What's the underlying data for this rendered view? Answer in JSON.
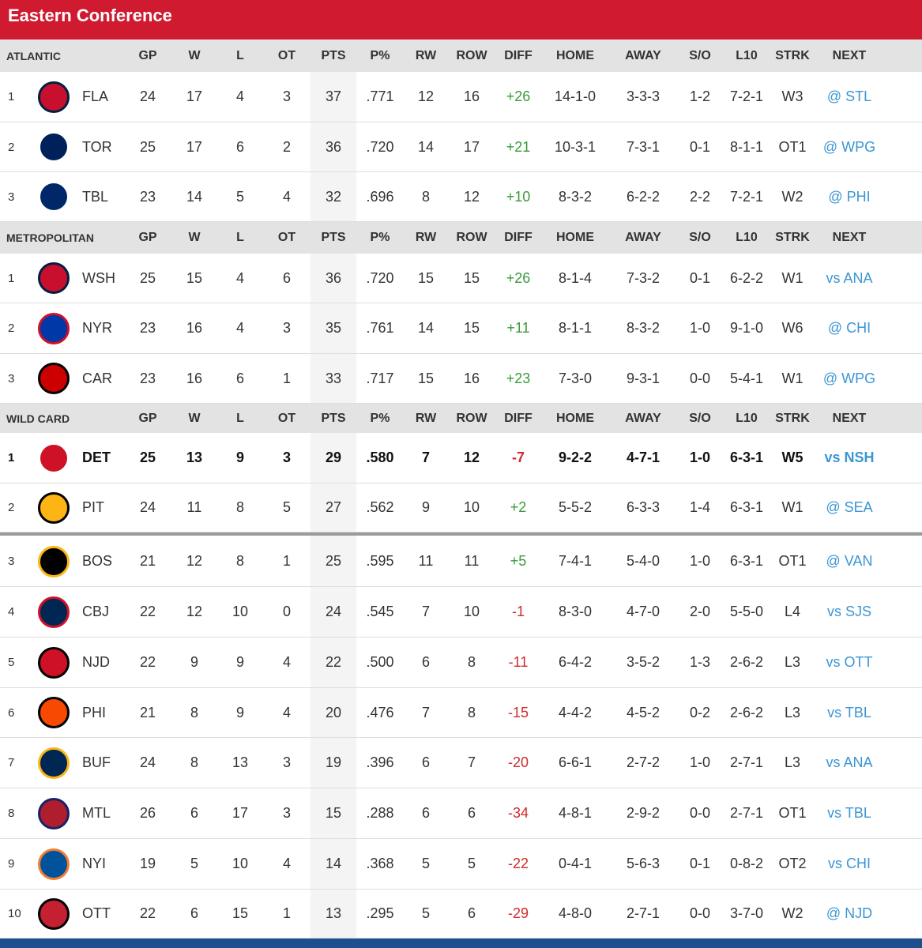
{
  "conference_title": "Eastern Conference",
  "columns": [
    "GP",
    "W",
    "L",
    "OT",
    "PTS",
    "P%",
    "RW",
    "ROW",
    "DIFF",
    "HOME",
    "AWAY",
    "S/O",
    "L10",
    "STRK",
    "NEXT"
  ],
  "groups": [
    {
      "name": "ATLANTIC",
      "teams": [
        {
          "pos": "1",
          "abbr": "FLA",
          "gp": "24",
          "w": "17",
          "l": "4",
          "ot": "3",
          "pts": "37",
          "pct": ".771",
          "rw": "12",
          "row": "16",
          "diff": "+26",
          "home": "14-1-0",
          "away": "3-3-3",
          "so": "1-2",
          "l10": "7-2-1",
          "strk": "W3",
          "next": "@ STL",
          "logo": {
            "icon": "panthers-logo-icon",
            "color": "#c8102e",
            "fg": "#041e42"
          }
        },
        {
          "pos": "2",
          "abbr": "TOR",
          "gp": "25",
          "w": "17",
          "l": "6",
          "ot": "2",
          "pts": "36",
          "pct": ".720",
          "rw": "14",
          "row": "17",
          "diff": "+21",
          "home": "10-3-1",
          "away": "7-3-1",
          "so": "0-1",
          "l10": "8-1-1",
          "strk": "OT1",
          "next": "@ WPG",
          "logo": {
            "icon": "maple-leafs-logo-icon",
            "color": "#00205b",
            "fg": "#ffffff"
          }
        },
        {
          "pos": "3",
          "abbr": "TBL",
          "gp": "23",
          "w": "14",
          "l": "5",
          "ot": "4",
          "pts": "32",
          "pct": ".696",
          "rw": "8",
          "row": "12",
          "diff": "+10",
          "home": "8-3-2",
          "away": "6-2-2",
          "so": "2-2",
          "l10": "7-2-1",
          "strk": "W2",
          "next": "@ PHI",
          "logo": {
            "icon": "lightning-logo-icon",
            "color": "#002868",
            "fg": "#ffffff"
          }
        }
      ]
    },
    {
      "name": "METROPOLITAN",
      "teams": [
        {
          "pos": "1",
          "abbr": "WSH",
          "gp": "25",
          "w": "15",
          "l": "4",
          "ot": "6",
          "pts": "36",
          "pct": ".720",
          "rw": "15",
          "row": "15",
          "diff": "+26",
          "home": "8-1-4",
          "away": "7-3-2",
          "so": "0-1",
          "l10": "6-2-2",
          "strk": "W1",
          "next": "vs ANA",
          "logo": {
            "icon": "capitals-logo-icon",
            "color": "#c8102e",
            "fg": "#041e42"
          }
        },
        {
          "pos": "2",
          "abbr": "NYR",
          "gp": "23",
          "w": "16",
          "l": "4",
          "ot": "3",
          "pts": "35",
          "pct": ".761",
          "rw": "14",
          "row": "15",
          "diff": "+11",
          "home": "8-1-1",
          "away": "8-3-2",
          "so": "1-0",
          "l10": "9-1-0",
          "strk": "W6",
          "next": "@ CHI",
          "logo": {
            "icon": "rangers-logo-icon",
            "color": "#0038a8",
            "fg": "#ce1126"
          }
        },
        {
          "pos": "3",
          "abbr": "CAR",
          "gp": "23",
          "w": "16",
          "l": "6",
          "ot": "1",
          "pts": "33",
          "pct": ".717",
          "rw": "15",
          "row": "16",
          "diff": "+23",
          "home": "7-3-0",
          "away": "9-3-1",
          "so": "0-0",
          "l10": "5-4-1",
          "strk": "W1",
          "next": "@ WPG",
          "logo": {
            "icon": "hurricanes-logo-icon",
            "color": "#cc0000",
            "fg": "#000000"
          }
        }
      ]
    },
    {
      "name": "WILD CARD",
      "teams": [
        {
          "pos": "1",
          "abbr": "DET",
          "gp": "25",
          "w": "13",
          "l": "9",
          "ot": "3",
          "pts": "29",
          "pct": ".580",
          "rw": "7",
          "row": "12",
          "diff": "-7",
          "home": "9-2-2",
          "away": "4-7-1",
          "so": "1-0",
          "l10": "6-3-1",
          "strk": "W5",
          "next": "vs NSH",
          "bold": true,
          "logo": {
            "icon": "red-wings-logo-icon",
            "color": "#ce1126",
            "fg": "#ffffff"
          }
        },
        {
          "pos": "2",
          "abbr": "PIT",
          "gp": "24",
          "w": "11",
          "l": "8",
          "ot": "5",
          "pts": "27",
          "pct": ".562",
          "rw": "9",
          "row": "10",
          "diff": "+2",
          "home": "5-5-2",
          "away": "6-3-3",
          "so": "1-4",
          "l10": "6-3-1",
          "strk": "W1",
          "next": "@ SEA",
          "logo": {
            "icon": "penguins-logo-icon",
            "color": "#fcb514",
            "fg": "#000000"
          }
        },
        {
          "pos": "3",
          "abbr": "BOS",
          "gp": "21",
          "w": "12",
          "l": "8",
          "ot": "1",
          "pts": "25",
          "pct": ".595",
          "rw": "11",
          "row": "11",
          "diff": "+5",
          "home": "7-4-1",
          "away": "5-4-0",
          "so": "1-0",
          "l10": "6-3-1",
          "strk": "OT1",
          "next": "@ VAN",
          "logo": {
            "icon": "bruins-logo-icon",
            "color": "#000000",
            "fg": "#fcb514"
          }
        },
        {
          "pos": "4",
          "abbr": "CBJ",
          "gp": "22",
          "w": "12",
          "l": "10",
          "ot": "0",
          "pts": "24",
          "pct": ".545",
          "rw": "7",
          "row": "10",
          "diff": "-1",
          "home": "8-3-0",
          "away": "4-7-0",
          "so": "2-0",
          "l10": "5-5-0",
          "strk": "L4",
          "next": "vs SJS",
          "logo": {
            "icon": "blue-jackets-logo-icon",
            "color": "#002654",
            "fg": "#ce1126"
          }
        },
        {
          "pos": "5",
          "abbr": "NJD",
          "gp": "22",
          "w": "9",
          "l": "9",
          "ot": "4",
          "pts": "22",
          "pct": ".500",
          "rw": "6",
          "row": "8",
          "diff": "-11",
          "home": "6-4-2",
          "away": "3-5-2",
          "so": "1-3",
          "l10": "2-6-2",
          "strk": "L3",
          "next": "vs OTT",
          "logo": {
            "icon": "devils-logo-icon",
            "color": "#ce1126",
            "fg": "#000000"
          }
        },
        {
          "pos": "6",
          "abbr": "PHI",
          "gp": "21",
          "w": "8",
          "l": "9",
          "ot": "4",
          "pts": "20",
          "pct": ".476",
          "rw": "7",
          "row": "8",
          "diff": "-15",
          "home": "4-4-2",
          "away": "4-5-2",
          "so": "0-2",
          "l10": "2-6-2",
          "strk": "L3",
          "next": "vs TBL",
          "logo": {
            "icon": "flyers-logo-icon",
            "color": "#f74902",
            "fg": "#000000"
          }
        },
        {
          "pos": "7",
          "abbr": "BUF",
          "gp": "24",
          "w": "8",
          "l": "13",
          "ot": "3",
          "pts": "19",
          "pct": ".396",
          "rw": "6",
          "row": "7",
          "diff": "-20",
          "home": "6-6-1",
          "away": "2-7-2",
          "so": "1-0",
          "l10": "2-7-1",
          "strk": "L3",
          "next": "vs ANA",
          "logo": {
            "icon": "sabres-logo-icon",
            "color": "#002654",
            "fg": "#fcb514"
          }
        },
        {
          "pos": "8",
          "abbr": "MTL",
          "gp": "26",
          "w": "6",
          "l": "17",
          "ot": "3",
          "pts": "15",
          "pct": ".288",
          "rw": "6",
          "row": "6",
          "diff": "-34",
          "home": "4-8-1",
          "away": "2-9-2",
          "so": "0-0",
          "l10": "2-7-1",
          "strk": "OT1",
          "next": "vs TBL",
          "logo": {
            "icon": "canadiens-logo-icon",
            "color": "#af1e2d",
            "fg": "#192168"
          }
        },
        {
          "pos": "9",
          "abbr": "NYI",
          "gp": "19",
          "w": "5",
          "l": "10",
          "ot": "4",
          "pts": "14",
          "pct": ".368",
          "rw": "5",
          "row": "5",
          "diff": "-22",
          "home": "0-4-1",
          "away": "5-6-3",
          "so": "0-1",
          "l10": "0-8-2",
          "strk": "OT2",
          "next": "vs CHI",
          "logo": {
            "icon": "islanders-logo-icon",
            "color": "#00539b",
            "fg": "#f47d30"
          }
        },
        {
          "pos": "10",
          "abbr": "OTT",
          "gp": "22",
          "w": "6",
          "l": "15",
          "ot": "1",
          "pts": "13",
          "pct": ".295",
          "rw": "5",
          "row": "6",
          "diff": "-29",
          "home": "4-8-0",
          "away": "2-7-1",
          "so": "0-0",
          "l10": "3-7-0",
          "strk": "W2",
          "next": "@ NJD",
          "logo": {
            "icon": "senators-logo-icon",
            "color": "#c52032",
            "fg": "#000000"
          }
        }
      ]
    }
  ]
}
